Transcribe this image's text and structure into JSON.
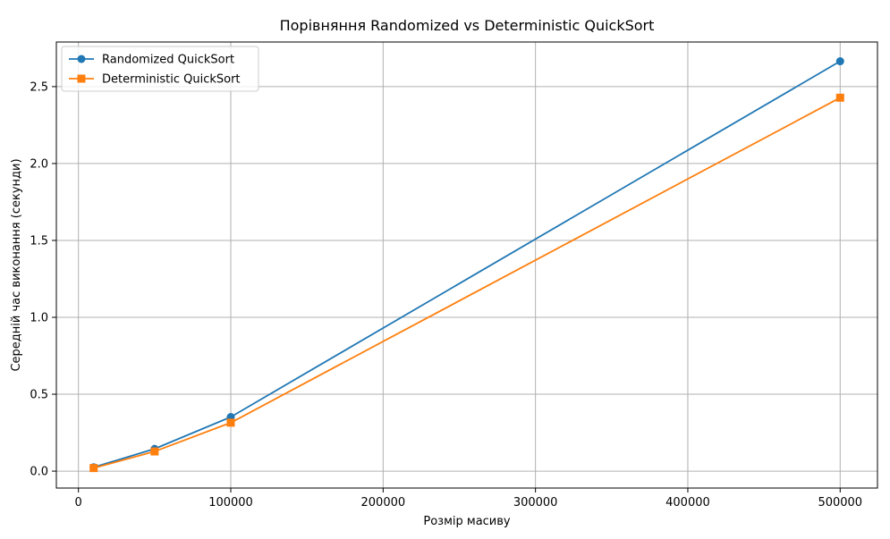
{
  "chart_data": {
    "type": "line",
    "title": "Порівняння Randomized vs Deterministic QuickSort",
    "xlabel": "Розмір масиву",
    "ylabel": "Середній час виконання (секунди)",
    "x": [
      10000,
      50000,
      100000,
      500000
    ],
    "series": [
      {
        "name": "Randomized QuickSort",
        "values": [
          0.025,
          0.145,
          0.352,
          2.665
        ],
        "color": "#1f77b4",
        "marker": "circle"
      },
      {
        "name": "Deterministic QuickSort",
        "values": [
          0.02,
          0.128,
          0.315,
          2.428
        ],
        "color": "#ff7f0e",
        "marker": "square"
      }
    ],
    "xlim": [
      -14500,
      524500
    ],
    "ylim": [
      -0.11,
      2.79
    ],
    "xticks": [
      0,
      100000,
      200000,
      300000,
      400000,
      500000
    ],
    "yticks": [
      0.0,
      0.5,
      1.0,
      1.5,
      2.0,
      2.5
    ],
    "xtick_labels": [
      "0",
      "100000",
      "200000",
      "300000",
      "400000",
      "500000"
    ],
    "ytick_labels": [
      "0.0",
      "0.5",
      "1.0",
      "1.5",
      "2.0",
      "2.5"
    ],
    "grid": true,
    "legend_position": "top-left"
  }
}
